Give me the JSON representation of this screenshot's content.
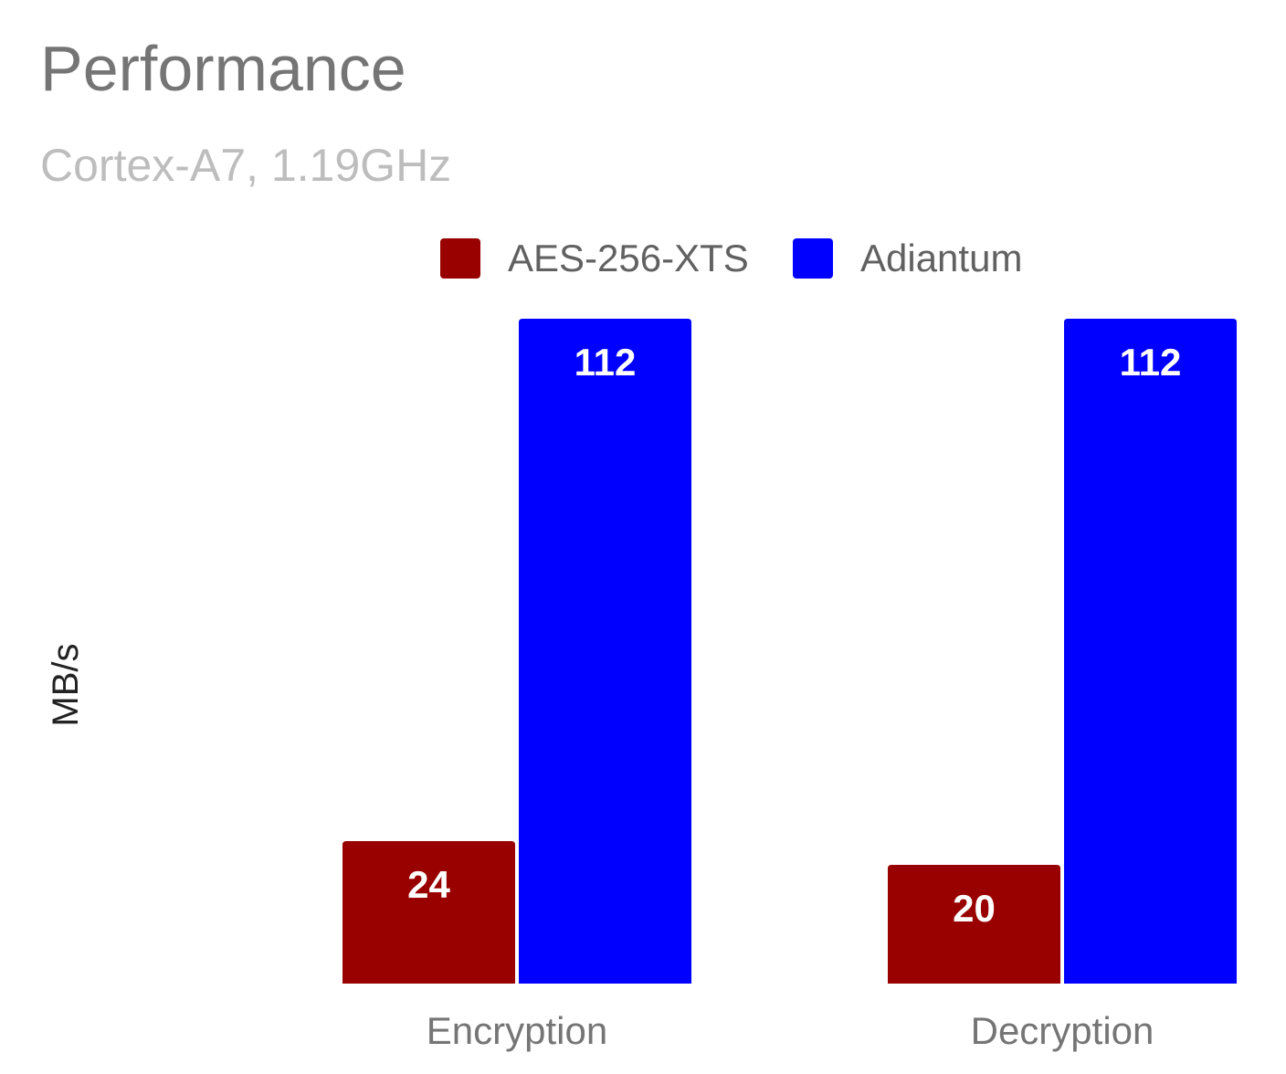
{
  "chart_data": {
    "type": "bar",
    "title": "Performance",
    "subtitle": "Cortex-A7, 1.19GHz",
    "ylabel": "MB/s",
    "xlabel": "",
    "categories": [
      "Encryption",
      "Decryption"
    ],
    "series": [
      {
        "name": "AES-256-XTS",
        "values": [
          24,
          20
        ],
        "color": "#990000"
      },
      {
        "name": "Adiantum",
        "values": [
          112,
          112
        ],
        "color": "#0000ff"
      }
    ],
    "ylim": [
      0,
      112
    ],
    "grid": false,
    "legend": "top-center",
    "data_labels": true
  }
}
